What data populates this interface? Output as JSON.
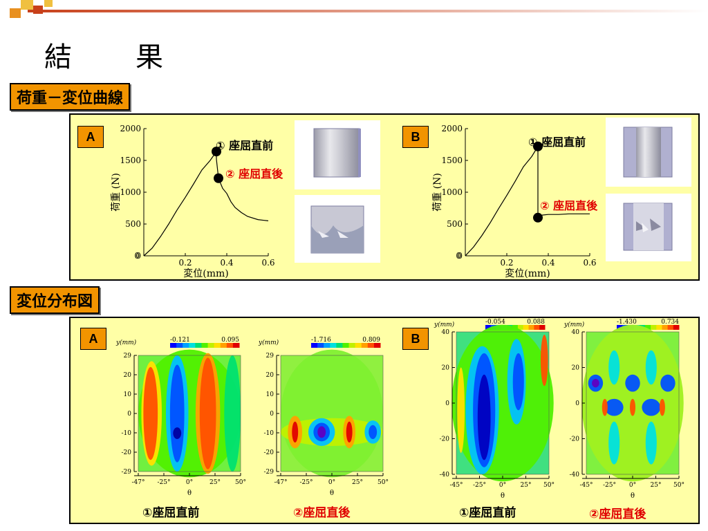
{
  "slide_title": "結　果",
  "sections": {
    "load_curve": "荷重－変位曲線",
    "displacement_map": "変位分布図"
  },
  "badges": {
    "a": "A",
    "b": "B"
  },
  "labels": {
    "before": "① 座屈直前",
    "after": "② 座屈直後",
    "circ1": "①",
    "circ2": "②",
    "before_caption": "①座屈直前",
    "after_caption": "②座屈直後"
  },
  "colors": {
    "badge": "#f29400",
    "panel": "#ffffa6",
    "red_label": "#e00000"
  },
  "chart_data": [
    {
      "type": "line",
      "id": "load-displacement-A",
      "xlabel": "変位(mm)",
      "ylabel": "荷重 (N)",
      "xlim": [
        0,
        0.6
      ],
      "ylim": [
        0,
        2000
      ],
      "xticks": [
        "0.2",
        "0.4",
        "0.6"
      ],
      "yticks": [
        "0",
        "500",
        "1000",
        "1500",
        "2000"
      ],
      "x": [
        0,
        0.04,
        0.08,
        0.12,
        0.16,
        0.2,
        0.24,
        0.28,
        0.32,
        0.35,
        0.35,
        0.36,
        0.38,
        0.4,
        0.42,
        0.44,
        0.47,
        0.5,
        0.55,
        0.6
      ],
      "y": [
        0,
        120,
        300,
        500,
        720,
        920,
        1130,
        1350,
        1500,
        1640,
        1520,
        1220,
        1060,
        980,
        850,
        760,
        680,
        620,
        570,
        550
      ],
      "points": [
        {
          "label": "① 座屈直前",
          "x": 0.35,
          "y": 1640
        },
        {
          "label": "② 座屈直後",
          "x": 0.36,
          "y": 1220
        }
      ]
    },
    {
      "type": "line",
      "id": "load-displacement-B",
      "xlabel": "変位(mm)",
      "ylabel": "荷重 (N)",
      "xlim": [
        0,
        0.6
      ],
      "ylim": [
        0,
        2000
      ],
      "xticks": [
        "0.2",
        "0.4",
        "0.6"
      ],
      "yticks": [
        "0",
        "500",
        "1000",
        "1500",
        "2000"
      ],
      "x": [
        0,
        0.04,
        0.08,
        0.12,
        0.16,
        0.2,
        0.24,
        0.28,
        0.32,
        0.35,
        0.35,
        0.37,
        0.4,
        0.45,
        0.5,
        0.55,
        0.6
      ],
      "y": [
        0,
        140,
        320,
        520,
        740,
        950,
        1170,
        1400,
        1560,
        1720,
        600,
        640,
        650,
        650,
        660,
        660,
        660
      ],
      "points": [
        {
          "label": "① 座屈直前",
          "x": 0.35,
          "y": 1720
        },
        {
          "label": "② 座屈直後",
          "x": 0.35,
          "y": 600
        }
      ]
    },
    {
      "type": "heatmap",
      "id": "map-A-before",
      "ylabel": "y(mm)",
      "xlabel": "θ",
      "colorbar": [
        "-0.121",
        "0.095"
      ],
      "yticks": [
        "29",
        "20",
        "10",
        "0",
        "-10",
        "-20",
        "-29"
      ],
      "xticks": [
        "-47°",
        "-25°",
        "0°",
        "25°",
        "50°"
      ]
    },
    {
      "type": "heatmap",
      "id": "map-A-after",
      "ylabel": "y(mm)",
      "xlabel": "θ",
      "colorbar": [
        "-1.716",
        "0.809"
      ],
      "yticks": [
        "29",
        "20",
        "10",
        "0",
        "-10",
        "-20",
        "-29"
      ],
      "xticks": [
        "-47°",
        "-25°",
        "0°",
        "25°",
        "50°"
      ]
    },
    {
      "type": "heatmap",
      "id": "map-B-before",
      "ylabel": "y(mm)",
      "xlabel": "θ",
      "colorbar": [
        "-0.054",
        "0.088"
      ],
      "yticks": [
        "40",
        "20",
        "0",
        "-20",
        "-40"
      ],
      "xticks": [
        "-45°",
        "-25°",
        "0°",
        "25°",
        "50°"
      ]
    },
    {
      "type": "heatmap",
      "id": "map-B-after",
      "ylabel": "y(mm)",
      "xlabel": "θ",
      "colorbar": [
        "-1.430",
        "0.734"
      ],
      "yticks": [
        "40",
        "20",
        "0",
        "-20",
        "-40"
      ],
      "xticks": [
        "-45°",
        "-25°",
        "0°",
        "25°",
        "50°"
      ]
    }
  ]
}
